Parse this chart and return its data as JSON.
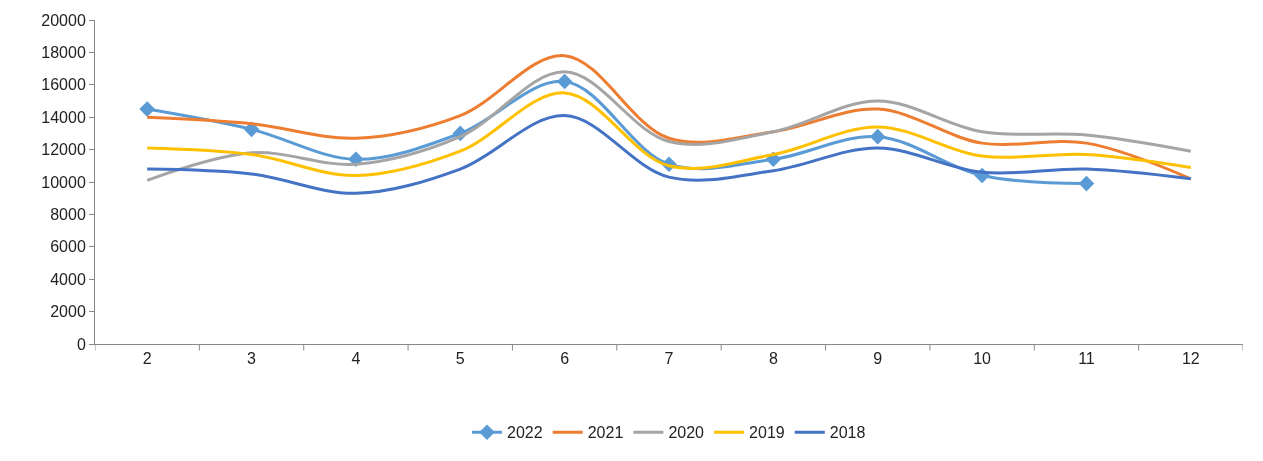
{
  "chart_data": {
    "type": "line",
    "categories": [
      "2",
      "3",
      "4",
      "5",
      "6",
      "7",
      "8",
      "9",
      "10",
      "11",
      "12"
    ],
    "series": [
      {
        "name": "2022",
        "color": "#5b9bd5",
        "marker": "diamond",
        "values": [
          14500,
          13250,
          11400,
          13000,
          16200,
          11100,
          11400,
          12800,
          10400,
          9900,
          null
        ]
      },
      {
        "name": "2021",
        "color": "#ed7d31",
        "values": [
          14000,
          13600,
          12700,
          14100,
          17800,
          12700,
          13100,
          14500,
          12400,
          12400,
          10200
        ]
      },
      {
        "name": "2020",
        "color": "#a5a5a5",
        "values": [
          10100,
          11800,
          11100,
          12800,
          16800,
          12500,
          13100,
          15000,
          13100,
          12900,
          11900
        ]
      },
      {
        "name": "2019",
        "color": "#ffc000",
        "values": [
          12100,
          11700,
          10400,
          11900,
          15500,
          11000,
          11700,
          13400,
          11600,
          11700,
          10900
        ]
      },
      {
        "name": "2018",
        "color": "#4472c4",
        "values": [
          10800,
          10500,
          9300,
          10800,
          14100,
          10300,
          10700,
          12100,
          10600,
          10800,
          10200
        ]
      }
    ],
    "ylim": [
      0,
      20000
    ],
    "yticks": [
      0,
      2000,
      4000,
      6000,
      8000,
      10000,
      12000,
      14000,
      16000,
      18000,
      20000
    ],
    "grid": false,
    "legend": "bottom",
    "marker": "none"
  }
}
